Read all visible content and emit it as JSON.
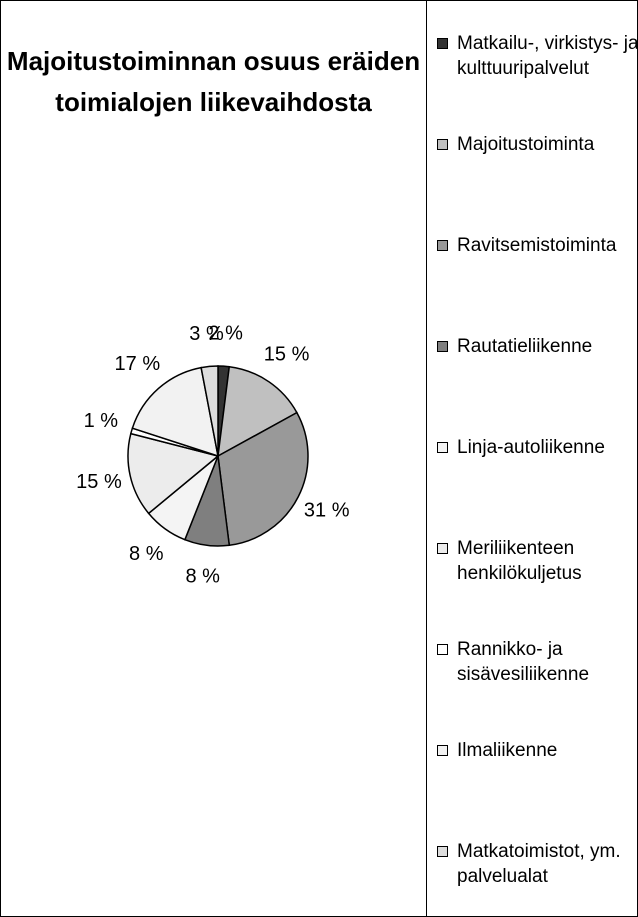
{
  "chart_data": {
    "type": "pie",
    "title": "Majoitustoiminnan osuus eräiden toimialojen liikevaihdosta",
    "categories": [
      "Matkailu-, virkistys- ja kulttuuripalvelut",
      "Majoitustoiminta",
      "Ravitsemistoiminta",
      "Rautatieliikenne",
      "Linja-autoliikenne",
      "Meriliikenteen henkilökuljetus",
      "Rannikko- ja sisävesiliikenne",
      "Ilmaliikenne",
      "Matkatoimistot, ym. palvelualat"
    ],
    "values": [
      2,
      15,
      31,
      8,
      8,
      15,
      1,
      17,
      3
    ],
    "value_labels": [
      "2 %",
      "15 %",
      "31 %",
      "8 %",
      "8 %",
      "15 %",
      "1 %",
      "17 %",
      "3 %"
    ],
    "colors": [
      "#333333",
      "#c0c0c0",
      "#999999",
      "#7f7f7f",
      "#f4f4f4",
      "#ececec",
      "#ffffff",
      "#f2f2f2",
      "#dddddd"
    ],
    "legend": "right"
  }
}
